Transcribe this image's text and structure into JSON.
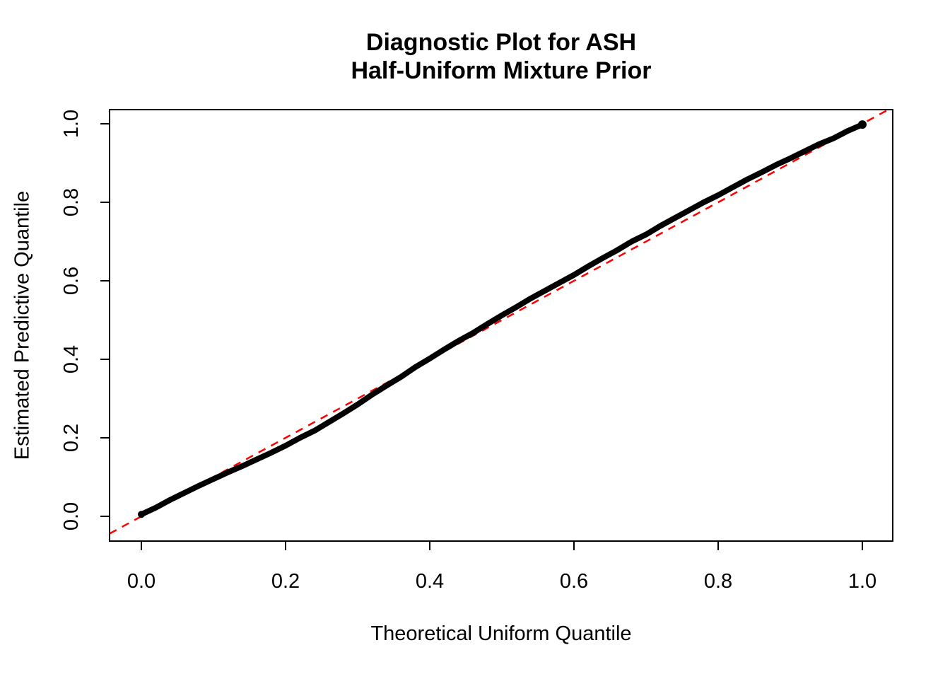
{
  "chart_data": {
    "type": "scatter",
    "title_lines": [
      "Diagnostic Plot for ASH",
      "Half-Uniform Mixture Prior"
    ],
    "xlabel": "Theoretical Uniform Quantile",
    "ylabel": "Estimated Predictive Quantile",
    "xlim": [
      0,
      1
    ],
    "ylim": [
      0,
      1
    ],
    "grid": false,
    "legend": "none",
    "xticks": {
      "values": [
        0,
        0.2,
        0.4,
        0.6,
        0.8,
        1.0
      ],
      "labels": [
        "0.0",
        "0.2",
        "0.4",
        "0.6",
        "0.8",
        "1.0"
      ]
    },
    "yticks": {
      "values": [
        0,
        0.2,
        0.4,
        0.6,
        0.8,
        1.0
      ],
      "labels": [
        "0.0",
        "0.2",
        "0.4",
        "0.6",
        "0.8",
        "1.0"
      ]
    },
    "series": [
      {
        "name": "estimated-predictive-quantiles",
        "marker": "point",
        "color": "#000000",
        "x": [
          0.0,
          0.02,
          0.04,
          0.06,
          0.08,
          0.1,
          0.12,
          0.14,
          0.16,
          0.18,
          0.2,
          0.22,
          0.24,
          0.26,
          0.28,
          0.3,
          0.32,
          0.34,
          0.36,
          0.38,
          0.4,
          0.42,
          0.44,
          0.46,
          0.48,
          0.5,
          0.52,
          0.54,
          0.56,
          0.58,
          0.6,
          0.62,
          0.64,
          0.66,
          0.68,
          0.7,
          0.72,
          0.74,
          0.76,
          0.78,
          0.8,
          0.82,
          0.84,
          0.86,
          0.88,
          0.9,
          0.92,
          0.94,
          0.96,
          0.98,
          1.0
        ],
        "y": [
          0.005,
          0.022,
          0.042,
          0.06,
          0.078,
          0.095,
          0.112,
          0.128,
          0.145,
          0.162,
          0.18,
          0.2,
          0.218,
          0.24,
          0.262,
          0.285,
          0.31,
          0.333,
          0.355,
          0.38,
          0.402,
          0.425,
          0.447,
          0.467,
          0.49,
          0.512,
          0.533,
          0.555,
          0.575,
          0.595,
          0.615,
          0.637,
          0.658,
          0.678,
          0.7,
          0.718,
          0.74,
          0.76,
          0.78,
          0.8,
          0.818,
          0.838,
          0.858,
          0.876,
          0.895,
          0.912,
          0.93,
          0.948,
          0.963,
          0.982,
          0.998
        ]
      }
    ],
    "reference_line": {
      "intercept": 0,
      "slope": 1,
      "color": "#FF0000",
      "style": "dashed"
    },
    "colors": {
      "points": "#000000",
      "reference": "#FF0000",
      "axis": "#000000",
      "background": "#FFFFFF"
    }
  }
}
